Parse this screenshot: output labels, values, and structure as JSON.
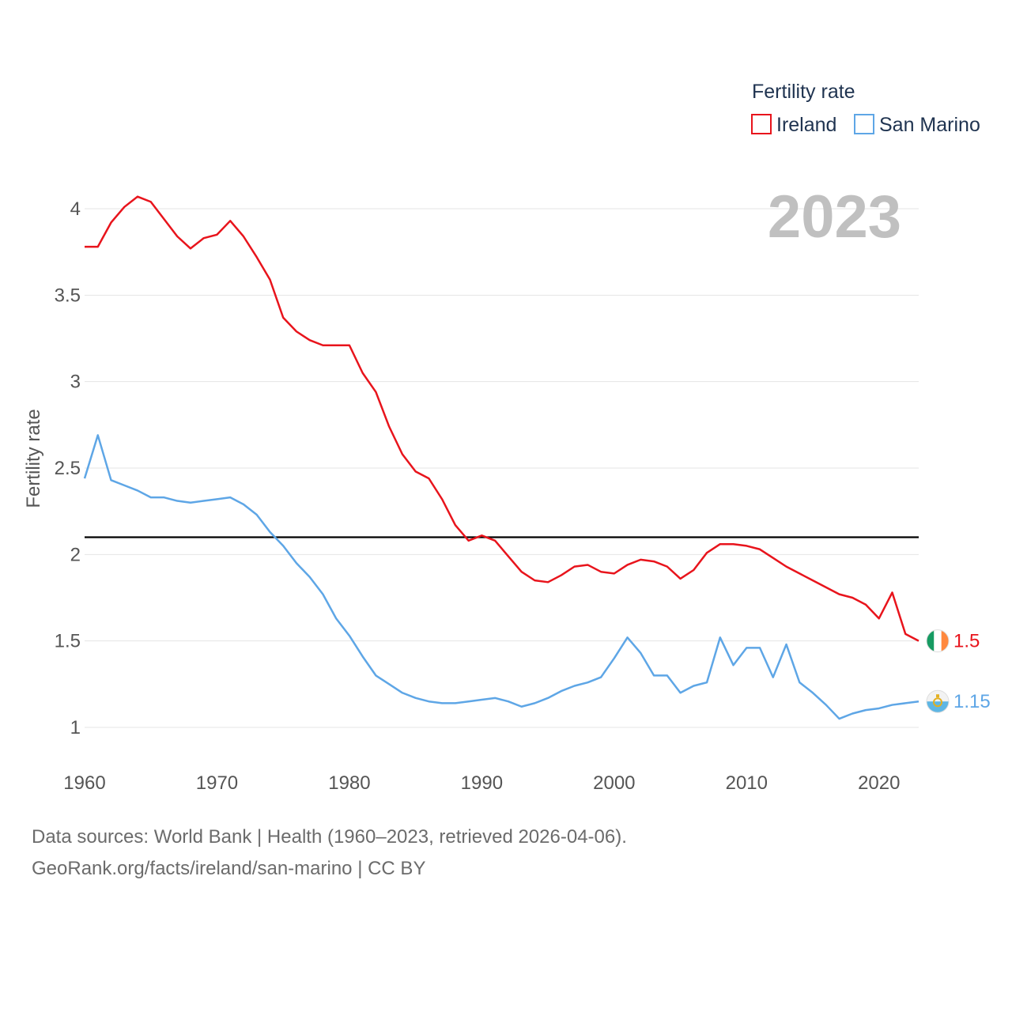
{
  "legend": {
    "title": "Fertility rate",
    "items": [
      "Ireland",
      "San Marino"
    ]
  },
  "year_label": "2023",
  "footer": {
    "line1": "Data sources: World Bank | Health (1960–2023, retrieved 2026-04-06).",
    "line2": "GeoRank.org/facts/ireland/san-marino | CC BY"
  },
  "chart_data": {
    "type": "line",
    "title": "Fertility rate",
    "xlabel": "",
    "ylabel": "Fertility rate",
    "xlim": [
      1960,
      2023
    ],
    "ylim": [
      0.85,
      4.15
    ],
    "x_ticks": [
      1960,
      1970,
      1980,
      1990,
      2000,
      2010,
      2020
    ],
    "y_ticks": [
      1,
      1.5,
      2,
      2.5,
      3,
      3.5,
      4
    ],
    "y_tick_labels": [
      "1",
      "1.5",
      "2",
      "2.5",
      "3",
      "3.5",
      "4"
    ],
    "grid": "horizontal",
    "reference_line": 2.1,
    "x": [
      1960,
      1961,
      1962,
      1963,
      1964,
      1965,
      1966,
      1967,
      1968,
      1969,
      1970,
      1971,
      1972,
      1973,
      1974,
      1975,
      1976,
      1977,
      1978,
      1979,
      1980,
      1981,
      1982,
      1983,
      1984,
      1985,
      1986,
      1987,
      1988,
      1989,
      1990,
      1991,
      1992,
      1993,
      1994,
      1995,
      1996,
      1997,
      1998,
      1999,
      2000,
      2001,
      2002,
      2003,
      2004,
      2005,
      2006,
      2007,
      2008,
      2009,
      2010,
      2011,
      2012,
      2013,
      2014,
      2015,
      2016,
      2017,
      2018,
      2019,
      2020,
      2021,
      2022,
      2023
    ],
    "series": [
      {
        "name": "Ireland",
        "color": "#e8141c",
        "end_label": "1.5",
        "flag": "ireland-flag-icon",
        "values": [
          3.78,
          3.78,
          3.92,
          4.01,
          4.07,
          4.04,
          3.94,
          3.84,
          3.77,
          3.83,
          3.85,
          3.93,
          3.84,
          3.72,
          3.59,
          3.37,
          3.29,
          3.24,
          3.21,
          3.21,
          3.21,
          3.05,
          2.94,
          2.74,
          2.58,
          2.48,
          2.44,
          2.32,
          2.17,
          2.08,
          2.11,
          2.08,
          1.99,
          1.9,
          1.85,
          1.84,
          1.88,
          1.93,
          1.94,
          1.9,
          1.89,
          1.94,
          1.97,
          1.96,
          1.93,
          1.86,
          1.91,
          2.01,
          2.06,
          2.06,
          2.05,
          2.03,
          1.98,
          1.93,
          1.89,
          1.85,
          1.81,
          1.77,
          1.75,
          1.71,
          1.63,
          1.78,
          1.54,
          1.5
        ]
      },
      {
        "name": "San Marino",
        "color": "#5ea6e6",
        "end_label": "1.15",
        "flag": "san-marino-flag-icon",
        "values": [
          2.44,
          2.69,
          2.43,
          2.4,
          2.37,
          2.33,
          2.33,
          2.31,
          2.3,
          2.31,
          2.32,
          2.33,
          2.29,
          2.23,
          2.13,
          2.05,
          1.95,
          1.87,
          1.77,
          1.63,
          1.53,
          1.41,
          1.3,
          1.25,
          1.2,
          1.17,
          1.15,
          1.14,
          1.14,
          1.15,
          1.16,
          1.17,
          1.15,
          1.12,
          1.14,
          1.17,
          1.21,
          1.24,
          1.26,
          1.29,
          1.4,
          1.52,
          1.43,
          1.3,
          1.3,
          1.2,
          1.24,
          1.26,
          1.52,
          1.36,
          1.46,
          1.46,
          1.29,
          1.48,
          1.26,
          1.2,
          1.13,
          1.05,
          1.08,
          1.1,
          1.11,
          1.13,
          1.14,
          1.15
        ]
      }
    ]
  }
}
